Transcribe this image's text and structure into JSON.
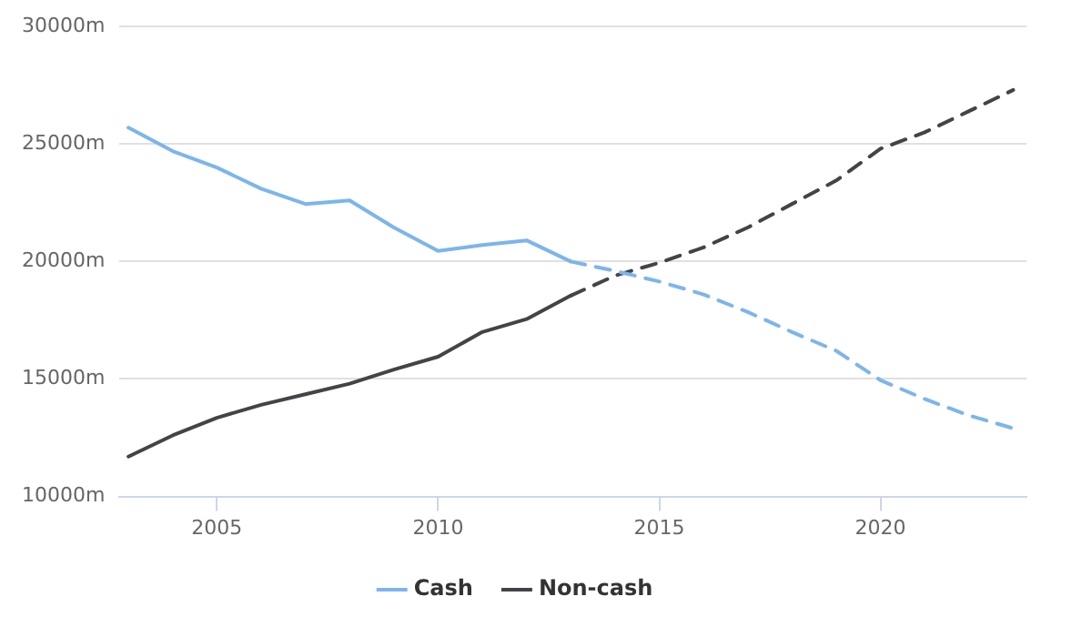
{
  "chart_data": {
    "type": "line",
    "xlim": [
      2002.8,
      2023.3
    ],
    "xticks": [
      2005,
      2010,
      2015,
      2020
    ],
    "ylim": [
      10000,
      30000
    ],
    "yticks": [
      {
        "value": 10000,
        "label": "10000m"
      },
      {
        "value": 15000,
        "label": "15000m"
      },
      {
        "value": 20000,
        "label": "20000m"
      },
      {
        "value": 25000,
        "label": "25000m"
      },
      {
        "value": 30000,
        "label": "30000m"
      }
    ],
    "grid": "y",
    "legend": "bottom",
    "marker": "none",
    "series": [
      {
        "name": "Cash",
        "color": "#7cb5ec",
        "line_style": "solid",
        "x": [
          2003,
          2004,
          2005,
          2006,
          2007,
          2008,
          2009,
          2010,
          2011,
          2012,
          2013
        ],
        "values": [
          25700,
          24700,
          24000,
          23100,
          22450,
          22600,
          21450,
          20450,
          20700,
          20900,
          20000
        ]
      },
      {
        "name": "Non-cash",
        "color": "#434348",
        "line_style": "solid",
        "x": [
          2003,
          2004,
          2005,
          2006,
          2007,
          2008,
          2009,
          2010,
          2011,
          2012,
          2013
        ],
        "values": [
          11700,
          12600,
          13350,
          13900,
          14350,
          14800,
          15400,
          15950,
          17000,
          17550,
          18550
        ]
      },
      {
        "color": "#7cb5ec",
        "line_style": "dashed",
        "x": [
          2013,
          2014,
          2015,
          2016,
          2017,
          2018,
          2019,
          2020,
          2021,
          2022,
          2023
        ],
        "values": [
          20000,
          19600,
          19150,
          18600,
          17850,
          17000,
          16200,
          14950,
          14150,
          13450,
          12900
        ]
      },
      {
        "color": "#434348",
        "line_style": "dashed",
        "x": [
          2013,
          2014,
          2015,
          2016,
          2017,
          2018,
          2019,
          2020,
          2021,
          2022,
          2023
        ],
        "values": [
          18550,
          19400,
          19950,
          20600,
          21450,
          22450,
          23450,
          24800,
          25500,
          26400,
          27300
        ]
      }
    ]
  }
}
